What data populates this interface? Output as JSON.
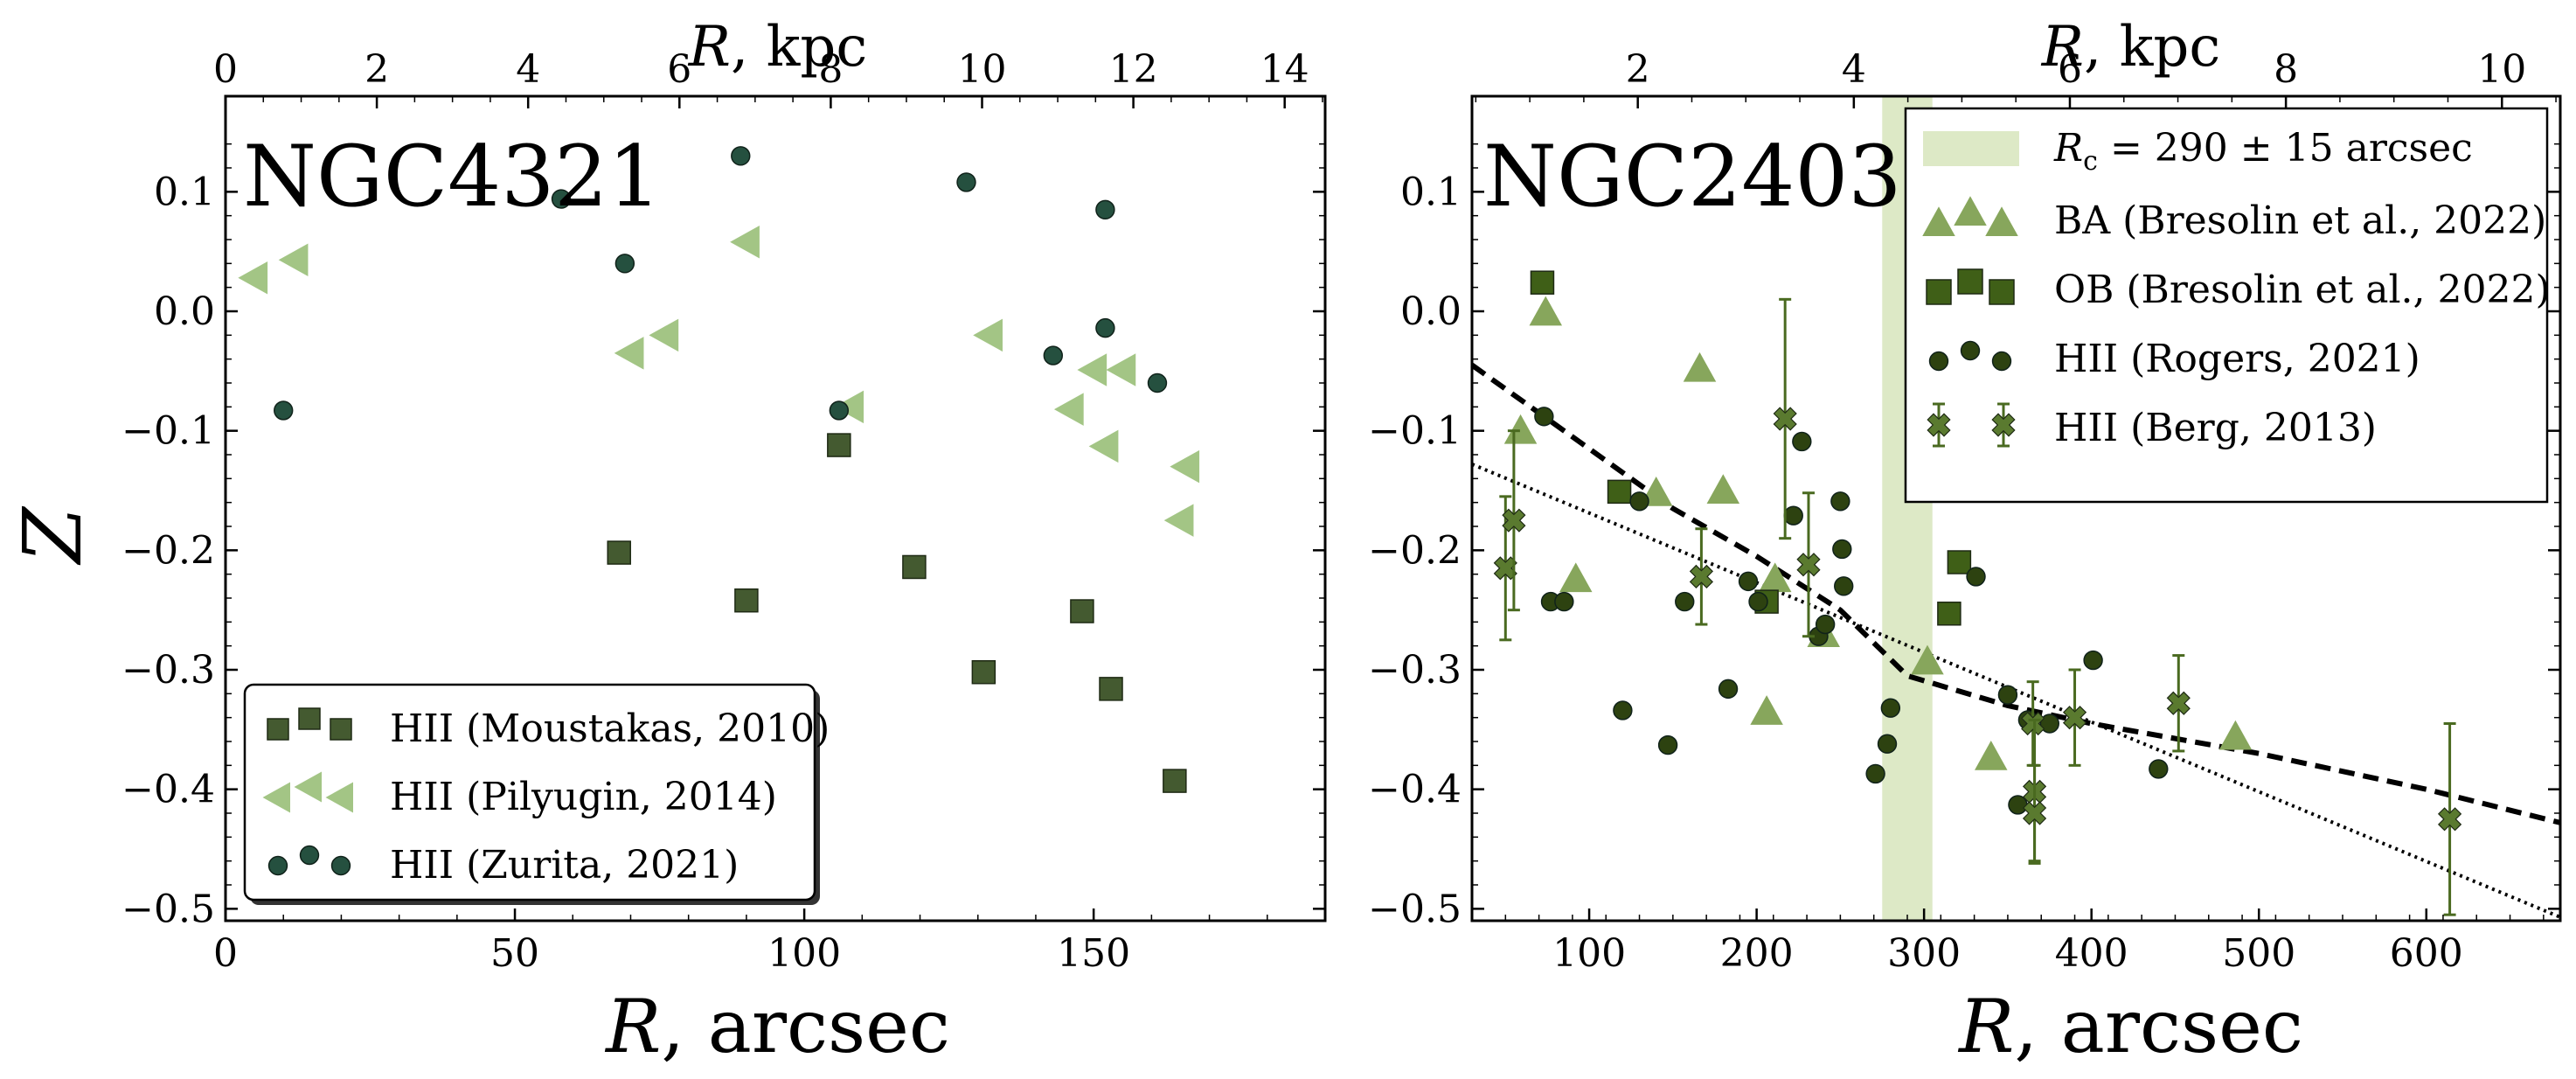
{
  "figure": {
    "description": "Two-panel scatter plot of Z versus galactocentric radius",
    "colors": {
      "moustakas": "#445a30",
      "pilyugin": "#a3c585",
      "zurita": "#25503f",
      "ba": "#87a65c",
      "ob": "#3f5f17",
      "rogers": "#2d4210",
      "berg": "#5a7a2f",
      "berg_err": "#4a6a20",
      "band": "#dde9c6",
      "text": "#000000"
    }
  },
  "chart_data": [
    {
      "type": "scatter",
      "panel_label": "NGC4321",
      "ylabel": "Z",
      "xlabel_main": "R",
      "xlabel_unit": ", arcsec",
      "xlabel_top_main": "R",
      "xlabel_top_unit": ", kpc",
      "xlim": [
        0,
        190
      ],
      "ylim": [
        -0.51,
        0.18
      ],
      "xticks": [
        0,
        50,
        100,
        150
      ],
      "xticks_top_kpc": [
        0,
        2,
        4,
        6,
        8,
        10,
        12,
        14
      ],
      "kpc_per_arcsec": 0.0765,
      "yticks": [
        0.1,
        0.0,
        -0.1,
        -0.2,
        -0.3,
        -0.4,
        -0.5
      ],
      "ytick_labels": [
        "0.1",
        "0.0",
        "−0.1",
        "−0.2",
        "−0.3",
        "−0.4",
        "−0.5"
      ],
      "legend_position": "lower-left",
      "series": [
        {
          "name": "HII (Moustakas, 2010)",
          "marker": "square",
          "color_key": "moustakas",
          "x": [
            68,
            90,
            106,
            119,
            131,
            148,
            153,
            164
          ],
          "y": [
            -0.202,
            -0.242,
            -0.112,
            -0.214,
            -0.302,
            -0.251,
            -0.316,
            -0.393
          ]
        },
        {
          "name": "HII (Pilyugin, 2014)",
          "marker": "triangle-left",
          "color_key": "pilyugin",
          "x": [
            5,
            12,
            70,
            76,
            90,
            108,
            132,
            146,
            150,
            152,
            155,
            165,
            166
          ],
          "y": [
            0.028,
            0.043,
            -0.035,
            -0.02,
            0.058,
            -0.08,
            -0.02,
            -0.082,
            -0.049,
            -0.113,
            -0.049,
            -0.175,
            -0.13
          ]
        },
        {
          "name": "HII (Zurita, 2021)",
          "marker": "circle",
          "color_key": "zurita",
          "x": [
            10,
            58,
            69,
            89,
            106,
            128,
            143,
            152,
            152,
            161
          ],
          "y": [
            -0.083,
            0.094,
            0.04,
            0.13,
            -0.083,
            0.108,
            -0.037,
            0.085,
            -0.014,
            -0.06
          ]
        }
      ]
    },
    {
      "type": "scatter",
      "panel_label": "NGC2403",
      "ylabel": "",
      "xlabel_main": "R",
      "xlabel_unit": ", arcsec",
      "xlabel_top_main": "R",
      "xlabel_top_unit": ", kpc",
      "xlim": [
        30,
        680
      ],
      "ylim": [
        -0.51,
        0.18
      ],
      "xticks": [
        100,
        200,
        300,
        400,
        500,
        600
      ],
      "xticks_top_kpc": [
        2,
        4,
        6,
        8,
        10
      ],
      "kpc_per_arcsec": 0.0155,
      "yticks": [
        0.1,
        0.0,
        -0.1,
        -0.2,
        -0.3,
        -0.4,
        -0.5
      ],
      "ytick_labels": [
        "0.1",
        "0.0",
        "−0.1",
        "−0.2",
        "−0.3",
        "−0.4",
        "−0.5"
      ],
      "legend_position": "upper-right",
      "band": {
        "label_lhs": "R",
        "label_sub": "c",
        "label_rhs": " = 290 ± 15 arcsec",
        "center": 290,
        "halfwidth": 15
      },
      "fit_lines": [
        {
          "style": "dashed",
          "points": [
            [
              30,
              -0.045
            ],
            [
              100,
              -0.115
            ],
            [
              150,
              -0.165
            ],
            [
              200,
              -0.205
            ],
            [
              250,
              -0.25
            ],
            [
              290,
              -0.305
            ],
            [
              350,
              -0.33
            ],
            [
              400,
              -0.345
            ],
            [
              500,
              -0.37
            ],
            [
              600,
              -0.4
            ],
            [
              680,
              -0.428
            ]
          ]
        },
        {
          "style": "dotted",
          "points": [
            [
              30,
              -0.128
            ],
            [
              680,
              -0.507
            ]
          ]
        }
      ],
      "series": [
        {
          "name": "BA (Bresolin et al., 2022)",
          "marker": "triangle-up",
          "color_key": "ba",
          "x": [
            59,
            74,
            92,
            140,
            166,
            180,
            206,
            211,
            240,
            302,
            340,
            486
          ],
          "y": [
            -0.1,
            -0.001,
            -0.224,
            -0.152,
            -0.048,
            -0.15,
            -0.335,
            -0.224,
            -0.27,
            -0.293,
            -0.373,
            -0.356
          ]
        },
        {
          "name": "OB (Bresolin et al., 2022)",
          "marker": "square",
          "color_key": "ob",
          "x": [
            72,
            118,
            206,
            315,
            321
          ],
          "y": [
            0.024,
            -0.151,
            -0.243,
            -0.253,
            -0.21
          ]
        },
        {
          "name": "HII (Rogers, 2021)",
          "marker": "circle",
          "color_key": "rogers",
          "x": [
            73,
            77,
            85,
            120,
            130,
            147,
            157,
            183,
            195,
            201,
            222,
            227,
            237,
            241,
            250,
            251,
            252,
            271,
            278,
            280,
            331,
            350,
            356,
            362,
            375,
            401,
            440
          ],
          "y": [
            -0.088,
            -0.243,
            -0.243,
            -0.334,
            -0.159,
            -0.363,
            -0.243,
            -0.316,
            -0.226,
            -0.243,
            -0.171,
            -0.109,
            -0.272,
            -0.262,
            -0.159,
            -0.199,
            -0.23,
            -0.387,
            -0.362,
            -0.332,
            -0.222,
            -0.321,
            -0.413,
            -0.342,
            -0.345,
            -0.292,
            -0.383
          ]
        },
        {
          "name": "HII (Berg, 2013)",
          "marker": "x",
          "color_key": "berg",
          "x": [
            50,
            55,
            167,
            217,
            231,
            365,
            366,
            366,
            390,
            452,
            614
          ],
          "y": [
            -0.215,
            -0.175,
            -0.222,
            -0.09,
            -0.212,
            -0.345,
            -0.402,
            -0.42,
            -0.34,
            -0.328,
            -0.425
          ],
          "yerr": [
            0.06,
            0.075,
            0.04,
            0.1,
            0.06,
            0.035,
            0.06,
            0.04,
            0.04,
            0.04,
            0.08
          ]
        }
      ]
    }
  ]
}
